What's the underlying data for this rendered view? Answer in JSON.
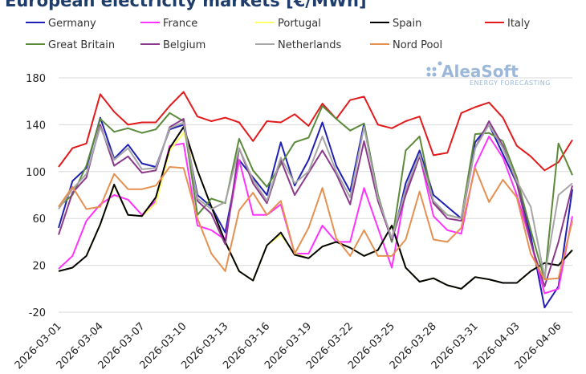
{
  "chart_data": {
    "type": "line",
    "title": "European electricity markets [€/MWh]",
    "logo": "AleaSoft",
    "logo_subtitle": "ENERGY FORECASTING",
    "x": [
      "2026-03-01",
      "2026-03-02",
      "2026-03-03",
      "2026-03-04",
      "2026-03-05",
      "2026-03-06",
      "2026-03-07",
      "2026-03-08",
      "2026-03-09",
      "2026-03-10",
      "2026-03-11",
      "2026-03-12",
      "2026-03-13",
      "2026-03-14",
      "2026-03-15",
      "2026-03-16",
      "2026-03-17",
      "2026-03-18",
      "2026-03-19",
      "2026-03-20",
      "2026-03-21",
      "2026-03-22",
      "2026-03-23",
      "2026-03-24",
      "2026-03-25",
      "2026-03-26",
      "2026-03-27",
      "2026-03-28",
      "2026-03-29",
      "2026-03-30",
      "2026-03-31",
      "2026-04-01",
      "2026-04-02",
      "2026-04-03",
      "2026-04-04",
      "2026-04-05",
      "2026-04-06",
      "2026-04-07"
    ],
    "series": [
      {
        "name": "Germany",
        "color": "#1f1fb4",
        "values": [
          52,
          92,
          103,
          146,
          111,
          123,
          107,
          104,
          136,
          140,
          80,
          70,
          48,
          110,
          95,
          80,
          125,
          88,
          110,
          142,
          105,
          83,
          141,
          80,
          40,
          90,
          118,
          80,
          70,
          60,
          125,
          140,
          115,
          90,
          45,
          -16,
          2,
          85
        ]
      },
      {
        "name": "France",
        "color": "#ff33ff",
        "values": [
          17,
          28,
          58,
          72,
          80,
          76,
          63,
          75,
          122,
          124,
          54,
          50,
          42,
          110,
          63,
          63,
          72,
          30,
          30,
          54,
          40,
          40,
          86,
          52,
          18,
          84,
          114,
          62,
          50,
          47,
          105,
          130,
          112,
          80,
          40,
          -4,
          0,
          62
        ]
      },
      {
        "name": "Portugal",
        "color": "#ffff66",
        "values": [
          15,
          18,
          28,
          55,
          88,
          63,
          62,
          73,
          118,
          133,
          101,
          70,
          40,
          15,
          7,
          37,
          46,
          30,
          26,
          36,
          40,
          35,
          28,
          33,
          54,
          18,
          6,
          9,
          3,
          0,
          10,
          8,
          5,
          5,
          15,
          22,
          20,
          33
        ]
      },
      {
        "name": "Spain",
        "color": "#000000",
        "values": [
          15,
          18,
          28,
          55,
          89,
          63,
          62,
          78,
          120,
          138,
          101,
          70,
          40,
          15,
          7,
          37,
          48,
          29,
          26,
          36,
          40,
          35,
          28,
          33,
          54,
          18,
          6,
          9,
          3,
          0,
          10,
          8,
          5,
          5,
          15,
          22,
          20,
          33
        ]
      },
      {
        "name": "Italy",
        "color": "#e31a1c",
        "values": [
          104,
          120,
          124,
          166,
          151,
          140,
          142,
          142,
          156,
          168,
          147,
          143,
          146,
          142,
          126,
          143,
          142,
          149,
          139,
          158,
          145,
          161,
          164,
          140,
          137,
          143,
          147,
          114,
          116,
          150,
          155,
          159,
          146,
          122,
          113,
          101,
          108,
          127
        ]
      },
      {
        "name": "Great Britain",
        "color": "#5a8a3a",
        "values": [
          70,
          80,
          105,
          145,
          134,
          137,
          133,
          136,
          150,
          143,
          63,
          77,
          73,
          128,
          101,
          87,
          106,
          125,
          129,
          156,
          145,
          135,
          141,
          80,
          40,
          118,
          130,
          73,
          63,
          60,
          132,
          133,
          126,
          95,
          50,
          8,
          124,
          97
        ]
      },
      {
        "name": "Belgium",
        "color": "#8b3a8b",
        "values": [
          46,
          82,
          95,
          140,
          105,
          113,
          99,
          101,
          138,
          145,
          75,
          64,
          38,
          120,
          90,
          73,
          110,
          80,
          99,
          118,
          98,
          72,
          126,
          75,
          42,
          80,
          113,
          73,
          60,
          58,
          120,
          143,
          122,
          90,
          40,
          2,
          40,
          88
        ]
      },
      {
        "name": "Netherlands",
        "color": "#a6a6a6",
        "values": [
          68,
          85,
          98,
          138,
          110,
          120,
          102,
          103,
          137,
          142,
          77,
          68,
          74,
          120,
          93,
          75,
          112,
          90,
          100,
          130,
          100,
          78,
          138,
          78,
          43,
          85,
          115,
          75,
          63,
          60,
          120,
          140,
          120,
          92,
          70,
          10,
          80,
          90
        ]
      },
      {
        "name": "Nord Pool",
        "color": "#e69050",
        "values": [
          70,
          87,
          68,
          70,
          98,
          85,
          85,
          88,
          104,
          103,
          60,
          30,
          15,
          67,
          82,
          63,
          75,
          30,
          52,
          86,
          43,
          28,
          50,
          28,
          28,
          42,
          83,
          42,
          40,
          52,
          103,
          74,
          93,
          78,
          30,
          8,
          9,
          58
        ]
      }
    ],
    "ylim": [
      -20,
      180
    ],
    "yticks": [
      -20,
      20,
      60,
      100,
      140,
      180
    ],
    "grid": true
  }
}
